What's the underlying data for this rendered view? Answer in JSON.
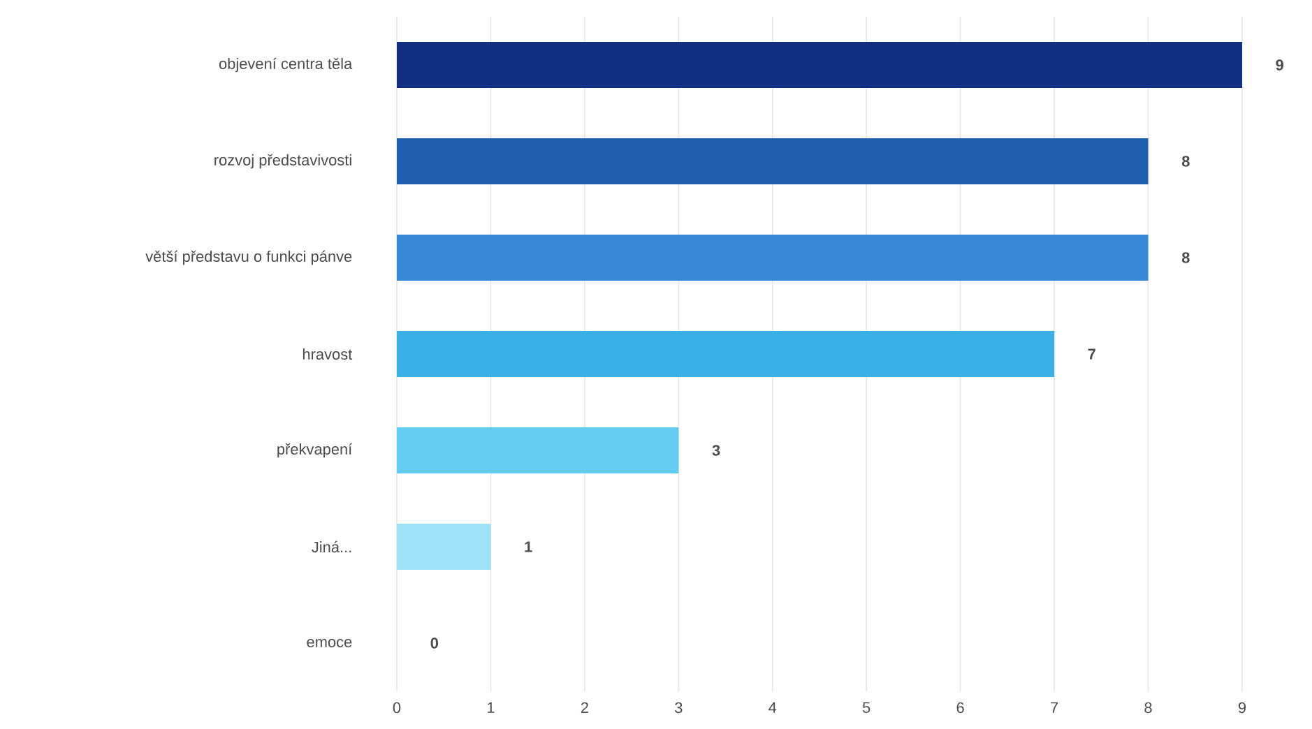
{
  "chart_data": {
    "type": "bar",
    "orientation": "horizontal",
    "categories": [
      "objevení centra těla",
      "rozvoj představivosti",
      "větší představu o funkci pánve",
      "hravost",
      "překvapení",
      "Jiná...",
      "emoce"
    ],
    "values": [
      9,
      8,
      8,
      7,
      3,
      1,
      0
    ],
    "colors": [
      "#12307f",
      "#1f5fad",
      "#3888d6",
      "#3bb0e6",
      "#62cdf0",
      "#a0e2f5",
      "#c8eef8"
    ],
    "xlim": [
      0,
      9
    ],
    "xticks": [
      0,
      1,
      2,
      3,
      4,
      5,
      6,
      7,
      8,
      9
    ],
    "grid": "x",
    "data_labels": true
  }
}
